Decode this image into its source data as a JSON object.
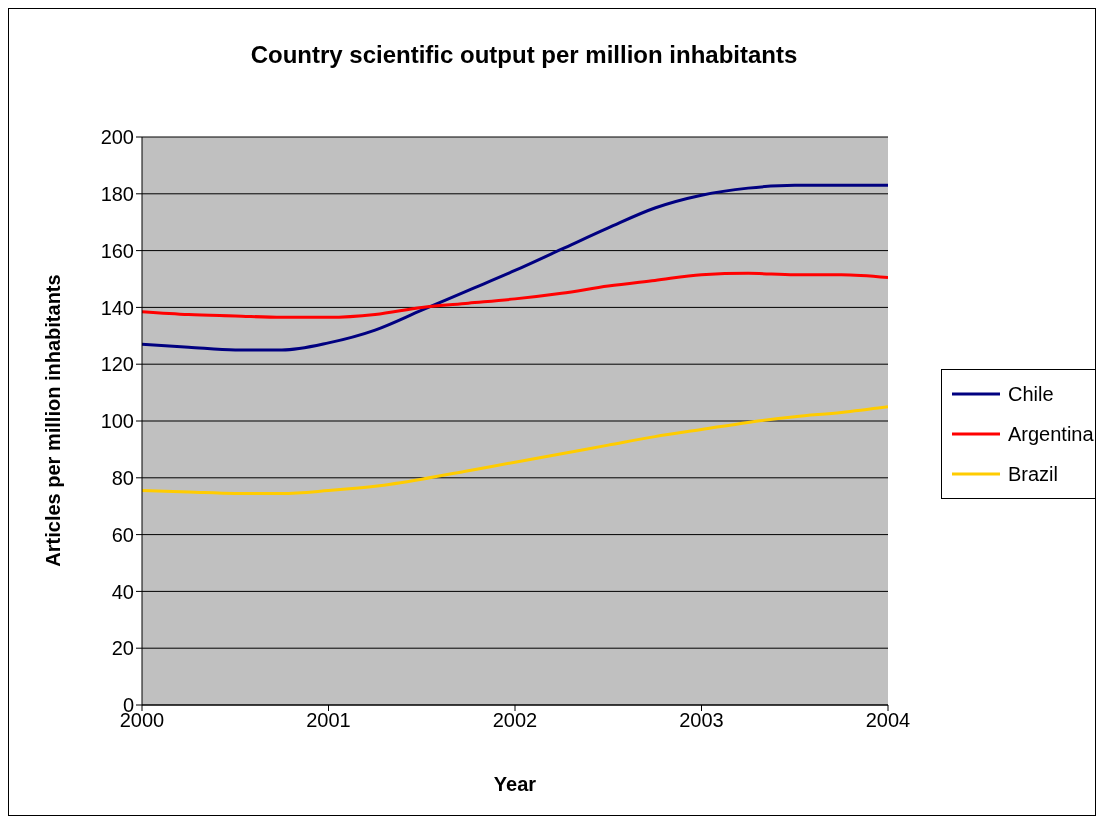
{
  "chart_data": {
    "type": "line",
    "title": "Country scientific output per million inhabitants",
    "xlabel": "Year",
    "ylabel": "Articles per million inhabitants",
    "x": [
      2000,
      2000.25,
      2000.5,
      2000.75,
      2001,
      2001.25,
      2001.5,
      2001.75,
      2002,
      2002.25,
      2002.5,
      2002.75,
      2003,
      2003.25,
      2003.5,
      2003.75,
      2004
    ],
    "series": [
      {
        "name": "Chile",
        "color": "#000080",
        "values": [
          127,
          126,
          125,
          125,
          127.5,
          132,
          139,
          146,
          153,
          160.5,
          168,
          175,
          179.5,
          182,
          183,
          183,
          183
        ]
      },
      {
        "name": "Argentina",
        "color": "#ff0000",
        "values": [
          138.5,
          137.5,
          137,
          136.5,
          136.5,
          137.5,
          140,
          141.5,
          143,
          145,
          147.5,
          149.5,
          151.5,
          152,
          151.5,
          151.5,
          150.5
        ]
      },
      {
        "name": "Brazil",
        "color": "#ffcc00",
        "values": [
          75.5,
          75,
          74.5,
          74.5,
          75.5,
          77,
          79.5,
          82.5,
          85.5,
          88.5,
          91.5,
          94.5,
          97,
          99.5,
          101.5,
          103,
          105
        ]
      }
    ],
    "xlim": [
      2000,
      2004
    ],
    "xticks": [
      2000,
      2001,
      2002,
      2003,
      2004
    ],
    "ylim": [
      0,
      200
    ],
    "yticks": [
      0,
      20,
      40,
      60,
      80,
      100,
      120,
      140,
      160,
      180,
      200
    ],
    "grid": "y",
    "legend": "right",
    "marker": "none",
    "line_style": "solid"
  }
}
